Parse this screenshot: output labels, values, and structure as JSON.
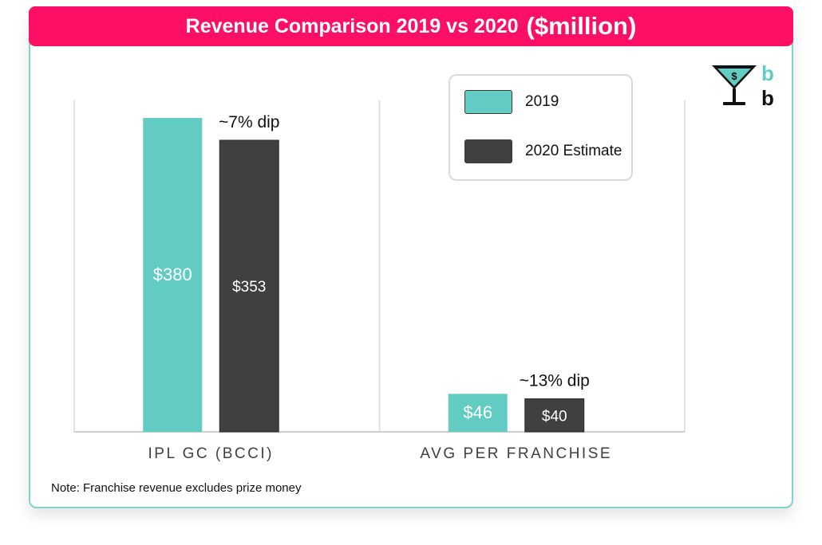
{
  "title": {
    "main": "Revenue Comparison 2019 vs 2020",
    "unit": "($million)"
  },
  "colors": {
    "accent": "#fc0f64",
    "series_2019": "#62ccc2",
    "series_2020": "#404040",
    "border": "#7fd3cb"
  },
  "legend": {
    "items": [
      {
        "label": "2019"
      },
      {
        "label": "2020 Estimate"
      }
    ]
  },
  "note": "Note: Franchise revenue excludes prize money",
  "logo": {
    "letter_top": "b",
    "letter_bottom": "b",
    "glass_symbol": "$"
  },
  "chart_data": {
    "type": "bar",
    "categories": [
      "IPL GC (BCCI)",
      "AVG PER FRANCHISE"
    ],
    "series": [
      {
        "name": "2019",
        "values": [
          380,
          46
        ],
        "labels": [
          "$380",
          "$46"
        ]
      },
      {
        "name": "2020 Estimate",
        "values": [
          353,
          40
        ],
        "labels": [
          "$353",
          "$40"
        ]
      }
    ],
    "annotations": [
      "~7% dip",
      "~13% dip"
    ],
    "ylim": [
      0,
      415
    ],
    "title": "Revenue Comparison 2019 vs 2020 ($million)",
    "xlabel": "",
    "ylabel": "",
    "grid": false,
    "legend": "top-right"
  }
}
